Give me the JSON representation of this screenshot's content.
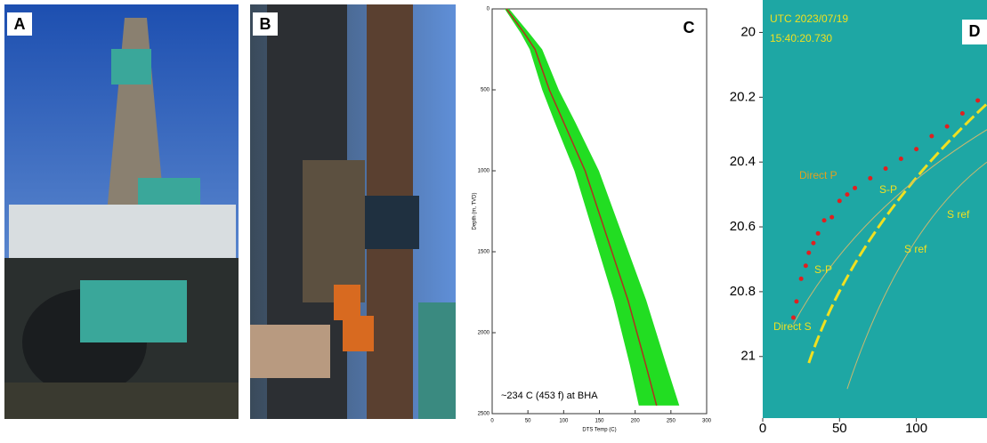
{
  "panel_labels": [
    "A",
    "B"
  ],
  "chart_data": [
    {
      "type": "line",
      "label": "C",
      "x_label": "DTS Temp (C)",
      "y_label": "Depth (m, TVD)",
      "annotation": "~234 C (453 f) at BHA",
      "x": [
        20,
        45,
        60,
        80,
        100,
        130,
        160,
        190,
        215,
        230
      ],
      "y": [
        0,
        150,
        250,
        500,
        700,
        1000,
        1400,
        1800,
        2200,
        2450
      ],
      "color": "#b03020",
      "band_color": "#22dd22",
      "xlim": [
        0,
        300
      ],
      "xticks": [
        0,
        50,
        100,
        150,
        200,
        250,
        300
      ],
      "ylim": [
        2500,
        0
      ],
      "yticks": [
        0,
        500,
        1000,
        1500,
        2000,
        2500
      ]
    },
    {
      "type": "scatter",
      "label": "D",
      "annotations": [
        "UTC 2023/07/19",
        "15:40:20.730",
        "Direct P",
        "S-P",
        "S-P",
        "S ref",
        "S ref",
        "Direct S"
      ],
      "x": [
        20,
        22,
        25,
        28,
        30,
        33,
        36,
        40,
        45,
        50,
        55,
        60,
        70,
        80,
        90,
        100,
        110,
        120,
        130,
        140
      ],
      "y": [
        20.88,
        20.83,
        20.76,
        20.72,
        20.68,
        20.65,
        20.62,
        20.58,
        20.57,
        20.52,
        20.5,
        20.48,
        20.45,
        20.42,
        20.39,
        20.36,
        20.32,
        20.29,
        20.25,
        20.21
      ],
      "color": "#e02020",
      "xlim": [
        0,
        146
      ],
      "xticks": [
        0,
        50,
        100
      ],
      "ylim": [
        21.19,
        19.9
      ],
      "yticks": [
        20,
        20.2,
        20.4,
        20.6,
        20.8,
        21
      ]
    }
  ]
}
